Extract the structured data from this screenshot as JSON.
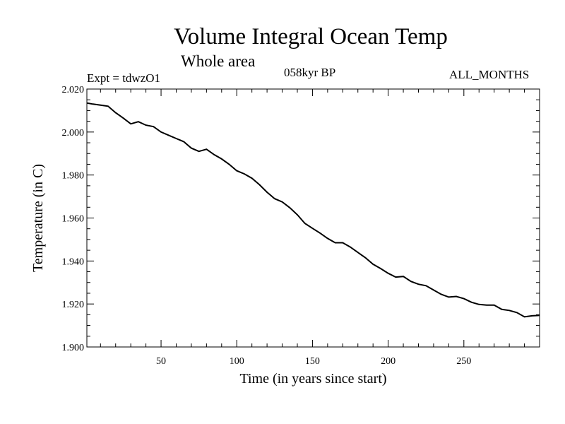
{
  "header": {
    "title": "Volume Integral Ocean Temp",
    "subtitle": "Whole area",
    "experiment": "Expt = tdwzO1",
    "period": "058kyr BP",
    "months": "ALL_MONTHS"
  },
  "chart_data": {
    "type": "line",
    "title": "Volume Integral Ocean Temp",
    "subtitle": "Whole area",
    "xlabel": "Time (in years since start)",
    "ylabel": "Temperature (in C)",
    "xlim": [
      1,
      300
    ],
    "ylim": [
      1.9,
      2.02
    ],
    "xticks": [
      50,
      100,
      150,
      200,
      250
    ],
    "xtick_labels": [
      "50",
      "100",
      "150",
      "200",
      "250"
    ],
    "yticks": [
      1.9,
      1.92,
      1.94,
      1.96,
      1.98,
      2.0,
      2.02
    ],
    "ytick_labels": [
      "1.900",
      "1.920",
      "1.940",
      "1.960",
      "1.980",
      "2.000",
      "2.020"
    ],
    "series": [
      {
        "name": "Temperature",
        "color": "#000000",
        "x": [
          1,
          5,
          10,
          15,
          20,
          25,
          30,
          35,
          40,
          45,
          50,
          55,
          60,
          65,
          70,
          75,
          80,
          85,
          90,
          95,
          100,
          105,
          110,
          115,
          120,
          125,
          130,
          135,
          140,
          145,
          150,
          155,
          160,
          165,
          170,
          175,
          180,
          185,
          190,
          195,
          200,
          205,
          210,
          215,
          220,
          225,
          230,
          235,
          240,
          245,
          250,
          255,
          260,
          265,
          270,
          275,
          280,
          285,
          290,
          295,
          300
        ],
        "values": [
          2.0135,
          2.013,
          2.0125,
          2.012,
          2.009,
          2.0065,
          2.0038,
          2.0048,
          2.0032,
          2.0025,
          2.0,
          1.9985,
          1.997,
          1.9955,
          1.9925,
          1.991,
          1.992,
          1.9895,
          1.9875,
          1.985,
          1.982,
          1.9805,
          1.9785,
          1.9755,
          1.972,
          1.969,
          1.9675,
          1.9648,
          1.9615,
          1.9575,
          1.9552,
          1.953,
          1.9505,
          1.9485,
          1.9485,
          1.9465,
          1.944,
          1.9415,
          1.9385,
          1.9365,
          1.9343,
          1.9325,
          1.9328,
          1.9305,
          1.9292,
          1.9285,
          1.9265,
          1.9245,
          1.9232,
          1.9235,
          1.9225,
          1.9208,
          1.9198,
          1.9195,
          1.9195,
          1.9175,
          1.917,
          1.916,
          1.914,
          1.9145,
          1.9147
        ]
      }
    ]
  }
}
